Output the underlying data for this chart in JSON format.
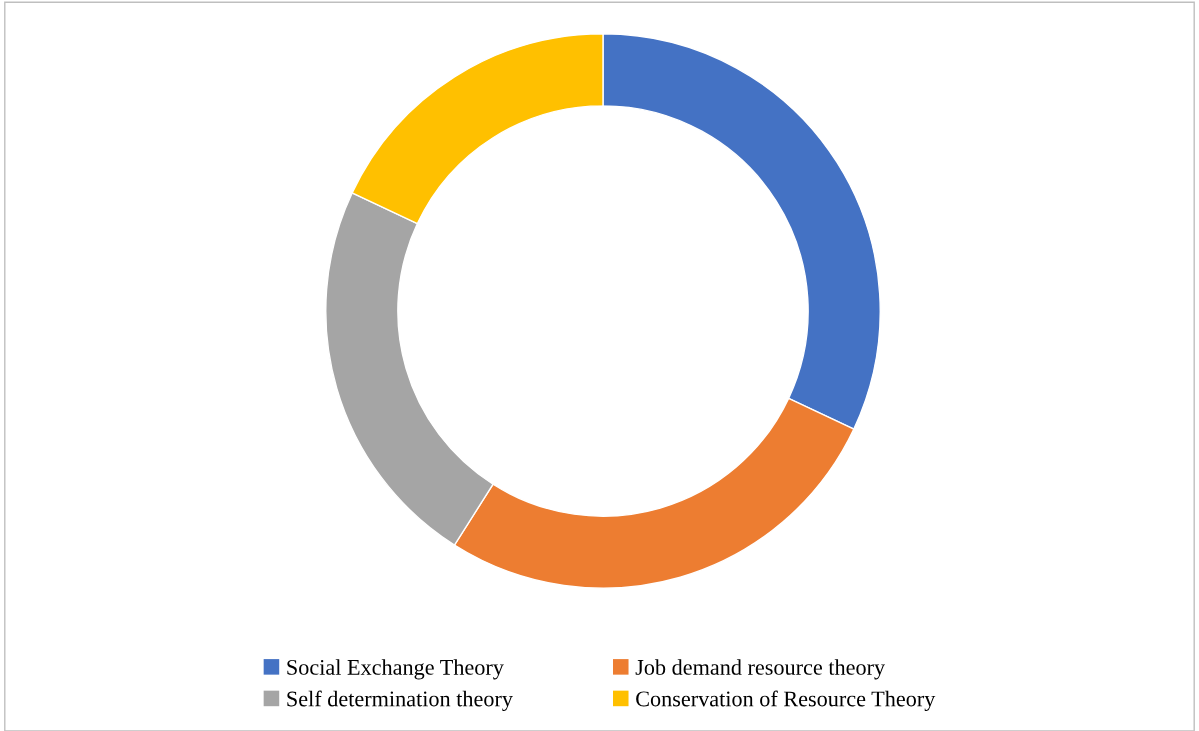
{
  "chart_data": {
    "type": "donut",
    "categories": [
      "Social Exchange Theory",
      "Job demand resource theory",
      "Self determination theory",
      "Conservation of Resource Theory"
    ],
    "values": [
      32,
      27,
      23,
      18
    ],
    "colors": [
      "#4472c4",
      "#ed7d31",
      "#a5a5a5",
      "#ffc000"
    ],
    "legend": "bottom"
  }
}
